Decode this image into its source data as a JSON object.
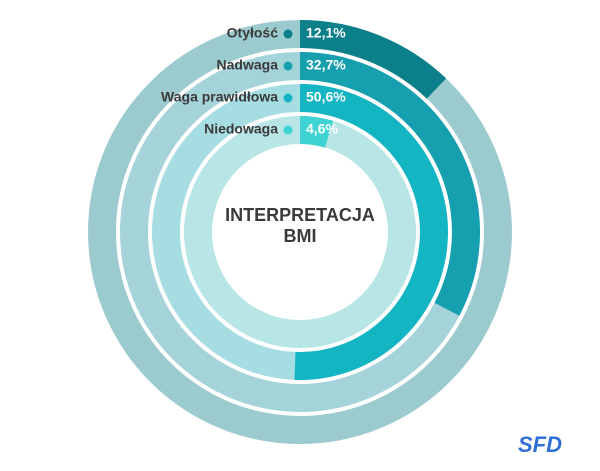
{
  "chart_data": {
    "type": "radial-bar",
    "title": "INTERPRETACJA BMI",
    "categories": [
      "Otyłość",
      "Nadwaga",
      "Waga prawidłowa",
      "Niedowaga"
    ],
    "series": [
      {
        "name": "BMI",
        "values": [
          12.1,
          32.7,
          50.6,
          4.6
        ],
        "value_labels": [
          "12,1%",
          "32,7%",
          "50,6%",
          "4,6%"
        ],
        "colors": [
          "#0b7f8a",
          "#169fae",
          "#14b5c3",
          "#3fd3d3"
        ],
        "track_colors": [
          "#9ccbcf",
          "#a4d3da",
          "#a6dde3",
          "#b8e5e5"
        ]
      }
    ],
    "ylim": [
      0,
      100
    ],
    "logo": "SFD"
  }
}
